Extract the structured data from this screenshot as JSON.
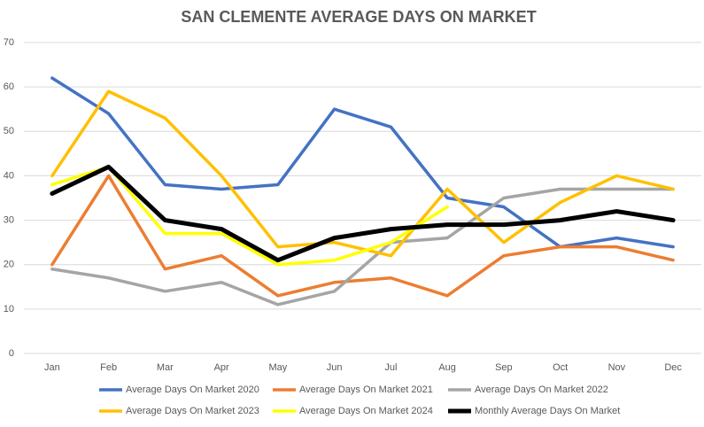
{
  "chart_data": {
    "type": "line",
    "title": "SAN CLEMENTE AVERAGE DAYS ON MARKET",
    "categories": [
      "Jan",
      "Feb",
      "Mar",
      "Apr",
      "May",
      "Jun",
      "Jul",
      "Aug",
      "Sep",
      "Oct",
      "Nov",
      "Dec"
    ],
    "series": [
      {
        "name": "Average Days On Market 2020",
        "color": "#4472c4",
        "values": [
          62,
          54,
          38,
          37,
          38,
          55,
          51,
          35,
          33,
          24,
          26,
          24
        ]
      },
      {
        "name": "Average Days On Market 2021",
        "color": "#ed7d31",
        "values": [
          20,
          40,
          19,
          22,
          13,
          16,
          17,
          13,
          22,
          24,
          24,
          21
        ]
      },
      {
        "name": "Average Days On Market 2022",
        "color": "#a5a5a5",
        "values": [
          19,
          17,
          14,
          16,
          11,
          14,
          25,
          26,
          35,
          37,
          37,
          37
        ]
      },
      {
        "name": "Average Days On Market 2023",
        "color": "#ffc000",
        "values": [
          40,
          59,
          53,
          40,
          24,
          25,
          22,
          37,
          25,
          34,
          40,
          37
        ]
      },
      {
        "name": "Average Days On Market 2024",
        "color": "#ffff00",
        "values": [
          38,
          42,
          27,
          27,
          20,
          21,
          25,
          33,
          null,
          null,
          null,
          null
        ]
      },
      {
        "name": "Monthly Average Days On Market",
        "color": "#000000",
        "values": [
          36,
          42,
          30,
          28,
          21,
          26,
          28,
          29,
          29,
          30,
          32,
          30
        ]
      }
    ],
    "ylim": [
      0,
      70
    ],
    "yticks": [
      0,
      10,
      20,
      30,
      40,
      50,
      60,
      70
    ],
    "grid": true,
    "legend": "bottom"
  }
}
